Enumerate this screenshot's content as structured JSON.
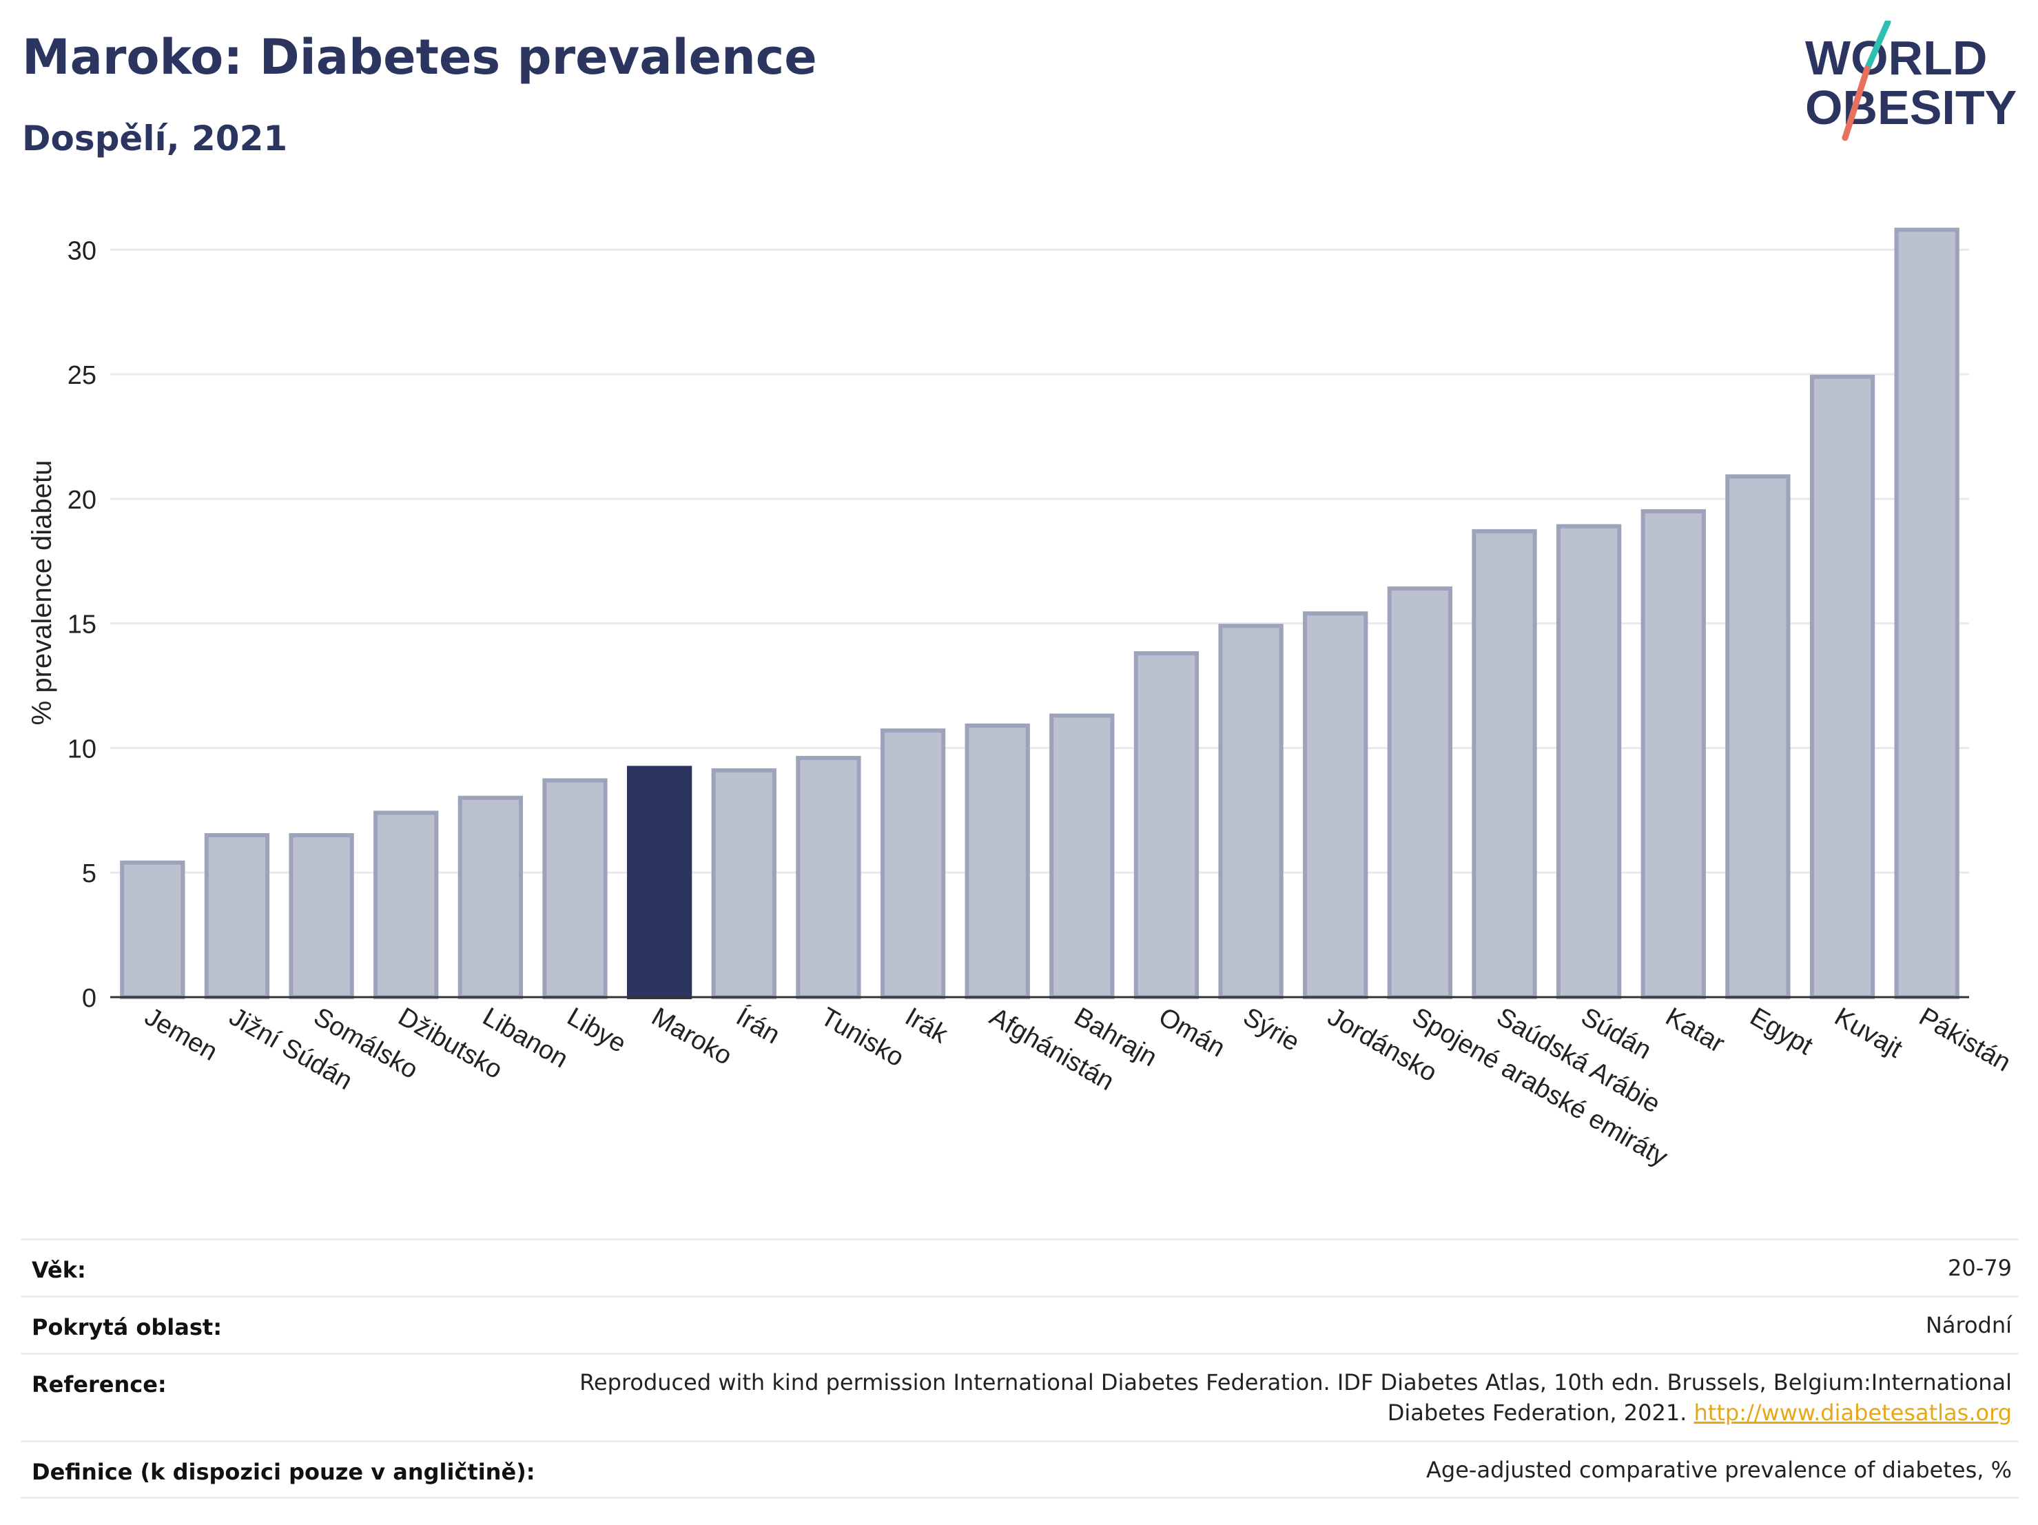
{
  "header": {
    "title": "Maroko: Diabetes prevalence",
    "subtitle": "Dospělí, 2021"
  },
  "logo": {
    "line1": "WORLD",
    "line2": "OBESITY"
  },
  "chart_data": {
    "type": "bar",
    "ylabel": "% prevalence diabetu",
    "ylim": [
      0,
      32
    ],
    "yticks": [
      0,
      5,
      10,
      15,
      20,
      25,
      30
    ],
    "grid": true,
    "categories": [
      "Jemen",
      "Jižní Súdán",
      "Somálsko",
      "Džibutsko",
      "Libanon",
      "Libye",
      "Maroko",
      "Írán",
      "Tunisko",
      "Irák",
      "Afghánistán",
      "Bahrajn",
      "Omán",
      "Sýrie",
      "Jordánsko",
      "Spojené arabské emiráty",
      "Saúdská Arábie",
      "Súdán",
      "Katar",
      "Egypt",
      "Kuvajt",
      "Pákistán"
    ],
    "values": [
      5.4,
      6.5,
      6.5,
      7.4,
      8.0,
      8.7,
      9.2,
      9.1,
      9.6,
      10.7,
      10.9,
      11.3,
      13.8,
      14.9,
      15.4,
      16.4,
      18.7,
      18.9,
      19.5,
      20.9,
      24.9,
      30.8
    ],
    "highlight": "Maroko",
    "colors": {
      "bar": "#bcc1d0",
      "bar_edge": "#9da3ba",
      "highlight": "#2c3560",
      "grid": "#e8eaf0",
      "axis": "#333333"
    }
  },
  "info": {
    "age": {
      "label": "Věk:",
      "value": "20-79"
    },
    "coverage": {
      "label": "Pokrytá oblast:",
      "value": "Národní"
    },
    "reference": {
      "label": "Reference:",
      "line1": "Reproduced with kind permission International Diabetes Federation.  IDF Diabetes Atlas, 10th edn. Brussels, Belgium:International",
      "line2": "Diabetes Federation, 2021. ",
      "link": "http://www.diabetesatlas.org"
    },
    "definition": {
      "label": "Definice (k dispozici pouze v angličtině):",
      "value": "Age-adjusted comparative prevalence of diabetes, %"
    }
  }
}
